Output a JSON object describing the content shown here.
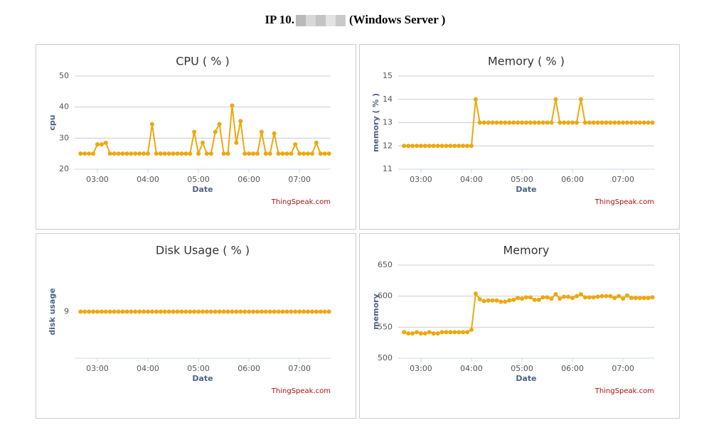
{
  "header": {
    "title_prefix": "IP 10.",
    "title_suffix": "(Windows Server )"
  },
  "chart_data": [
    {
      "type": "line",
      "title": "CPU ( % )",
      "y_label": "cpu",
      "x_label": "Date",
      "credit": "ThingSpeak.com",
      "color": "#eea70e",
      "grid": true,
      "x": [
        "02:40",
        "02:45",
        "02:50",
        "02:55",
        "03:00",
        "03:05",
        "03:10",
        "03:15",
        "03:20",
        "03:25",
        "03:30",
        "03:35",
        "03:40",
        "03:45",
        "03:50",
        "03:55",
        "04:00",
        "04:05",
        "04:10",
        "04:15",
        "04:20",
        "04:25",
        "04:30",
        "04:35",
        "04:40",
        "04:45",
        "04:50",
        "04:55",
        "05:00",
        "05:05",
        "05:10",
        "05:15",
        "05:20",
        "05:25",
        "05:30",
        "05:35",
        "05:40",
        "05:45",
        "05:50",
        "05:55",
        "06:00",
        "06:05",
        "06:10",
        "06:15",
        "06:20",
        "06:25",
        "06:30",
        "06:35",
        "06:40",
        "06:45",
        "06:50",
        "06:55",
        "07:00",
        "07:05",
        "07:10",
        "07:15",
        "07:20",
        "07:25",
        "07:30",
        "07:35"
      ],
      "values": [
        25,
        25,
        25,
        25,
        28,
        28,
        28.5,
        25,
        25,
        25,
        25,
        25,
        25,
        25,
        25,
        25,
        25,
        34.5,
        25,
        25,
        25,
        25,
        25,
        25,
        25,
        25,
        25,
        32,
        25,
        28.5,
        25,
        25,
        32,
        34.5,
        25,
        25,
        40.5,
        28.5,
        35.5,
        25,
        25,
        25,
        25,
        32,
        25,
        25,
        31.5,
        25,
        25,
        25,
        25,
        28,
        25,
        25,
        25,
        25,
        28.5,
        25,
        25,
        25
      ],
      "xlim": [
        "02:33",
        "07:37"
      ],
      "xticks": [
        "03:00",
        "04:00",
        "05:00",
        "06:00",
        "07:00"
      ],
      "ylim": [
        20,
        50
      ],
      "yticks": [
        20,
        30,
        40,
        50
      ]
    },
    {
      "type": "line",
      "title": "Memory ( % )",
      "y_label": "memory ( % )",
      "x_label": "Date",
      "credit": "ThingSpeak.com",
      "color": "#eea70e",
      "grid": true,
      "x": [
        "02:40",
        "02:45",
        "02:50",
        "02:55",
        "03:00",
        "03:05",
        "03:10",
        "03:15",
        "03:20",
        "03:25",
        "03:30",
        "03:35",
        "03:40",
        "03:45",
        "03:50",
        "03:55",
        "04:00",
        "04:05",
        "04:10",
        "04:15",
        "04:20",
        "04:25",
        "04:30",
        "04:35",
        "04:40",
        "04:45",
        "04:50",
        "04:55",
        "05:00",
        "05:05",
        "05:10",
        "05:15",
        "05:20",
        "05:25",
        "05:30",
        "05:35",
        "05:40",
        "05:45",
        "05:50",
        "05:55",
        "06:00",
        "06:05",
        "06:10",
        "06:15",
        "06:20",
        "06:25",
        "06:30",
        "06:35",
        "06:40",
        "06:45",
        "06:50",
        "06:55",
        "07:00",
        "07:05",
        "07:10",
        "07:15",
        "07:20",
        "07:25",
        "07:30",
        "07:35"
      ],
      "values": [
        12,
        12,
        12,
        12,
        12,
        12,
        12,
        12,
        12,
        12,
        12,
        12,
        12,
        12,
        12,
        12,
        12,
        14,
        13,
        13,
        13,
        13,
        13,
        13,
        13,
        13,
        13,
        13,
        13,
        13,
        13,
        13,
        13,
        13,
        13,
        13,
        14,
        13,
        13,
        13,
        13,
        13,
        14,
        13,
        13,
        13,
        13,
        13,
        13,
        13,
        13,
        13,
        13,
        13,
        13,
        13,
        13,
        13,
        13,
        13
      ],
      "xlim": [
        "02:33",
        "07:37"
      ],
      "xticks": [
        "03:00",
        "04:00",
        "05:00",
        "06:00",
        "07:00"
      ],
      "ylim": [
        11,
        15
      ],
      "yticks": [
        11,
        12,
        13,
        14,
        15
      ]
    },
    {
      "type": "line",
      "title": "Disk Usage ( % )",
      "y_label": "disk usage",
      "x_label": "Date",
      "credit": "ThingSpeak.com",
      "color": "#eea70e",
      "grid": false,
      "x": [
        "02:40",
        "02:45",
        "02:50",
        "02:55",
        "03:00",
        "03:05",
        "03:10",
        "03:15",
        "03:20",
        "03:25",
        "03:30",
        "03:35",
        "03:40",
        "03:45",
        "03:50",
        "03:55",
        "04:00",
        "04:05",
        "04:10",
        "04:15",
        "04:20",
        "04:25",
        "04:30",
        "04:35",
        "04:40",
        "04:45",
        "04:50",
        "04:55",
        "05:00",
        "05:05",
        "05:10",
        "05:15",
        "05:20",
        "05:25",
        "05:30",
        "05:35",
        "05:40",
        "05:45",
        "05:50",
        "05:55",
        "06:00",
        "06:05",
        "06:10",
        "06:15",
        "06:20",
        "06:25",
        "06:30",
        "06:35",
        "06:40",
        "06:45",
        "06:50",
        "06:55",
        "07:00",
        "07:05",
        "07:10",
        "07:15",
        "07:20",
        "07:25",
        "07:30",
        "07:35"
      ],
      "values": [
        9,
        9,
        9,
        9,
        9,
        9,
        9,
        9,
        9,
        9,
        9,
        9,
        9,
        9,
        9,
        9,
        9,
        9,
        9,
        9,
        9,
        9,
        9,
        9,
        9,
        9,
        9,
        9,
        9,
        9,
        9,
        9,
        9,
        9,
        9,
        9,
        9,
        9,
        9,
        9,
        9,
        9,
        9,
        9,
        9,
        9,
        9,
        9,
        9,
        9,
        9,
        9,
        9,
        9,
        9,
        9,
        9,
        9,
        9,
        9
      ],
      "xlim": [
        "02:33",
        "07:37"
      ],
      "xticks": [
        "03:00",
        "04:00",
        "05:00",
        "06:00",
        "07:00"
      ],
      "ylim": [
        8,
        10
      ],
      "yticks": [
        9
      ]
    },
    {
      "type": "line",
      "title": "Memory",
      "y_label": "memory",
      "x_label": "Date",
      "credit": "ThingSpeak.com",
      "color": "#eea70e",
      "grid": true,
      "x": [
        "02:40",
        "02:45",
        "02:50",
        "02:55",
        "03:00",
        "03:05",
        "03:10",
        "03:15",
        "03:20",
        "03:25",
        "03:30",
        "03:35",
        "03:40",
        "03:45",
        "03:50",
        "03:55",
        "04:00",
        "04:05",
        "04:10",
        "04:15",
        "04:20",
        "04:25",
        "04:30",
        "04:35",
        "04:40",
        "04:45",
        "04:50",
        "04:55",
        "05:00",
        "05:05",
        "05:10",
        "05:15",
        "05:20",
        "05:25",
        "05:30",
        "05:35",
        "05:40",
        "05:45",
        "05:50",
        "05:55",
        "06:00",
        "06:05",
        "06:10",
        "06:15",
        "06:20",
        "06:25",
        "06:30",
        "06:35",
        "06:40",
        "06:45",
        "06:50",
        "06:55",
        "07:00",
        "07:05",
        "07:10",
        "07:15",
        "07:20",
        "07:25",
        "07:30",
        "07:35"
      ],
      "values": [
        542,
        540,
        540,
        542,
        540,
        540,
        542,
        540,
        540,
        542,
        542,
        542,
        542,
        542,
        542,
        542,
        546,
        604,
        595,
        592,
        593,
        593,
        593,
        591,
        591,
        593,
        594,
        597,
        596,
        598,
        598,
        594,
        594,
        598,
        598,
        596,
        603,
        596,
        599,
        599,
        597,
        600,
        603,
        598,
        598,
        598,
        599,
        600,
        600,
        600,
        597,
        600,
        596,
        601,
        597,
        597,
        597,
        597,
        597,
        598
      ],
      "xlim": [
        "02:33",
        "07:37"
      ],
      "xticks": [
        "03:00",
        "04:00",
        "05:00",
        "06:00",
        "07:00"
      ],
      "ylim": [
        500,
        650
      ],
      "yticks": [
        500,
        550,
        600,
        650
      ]
    }
  ]
}
